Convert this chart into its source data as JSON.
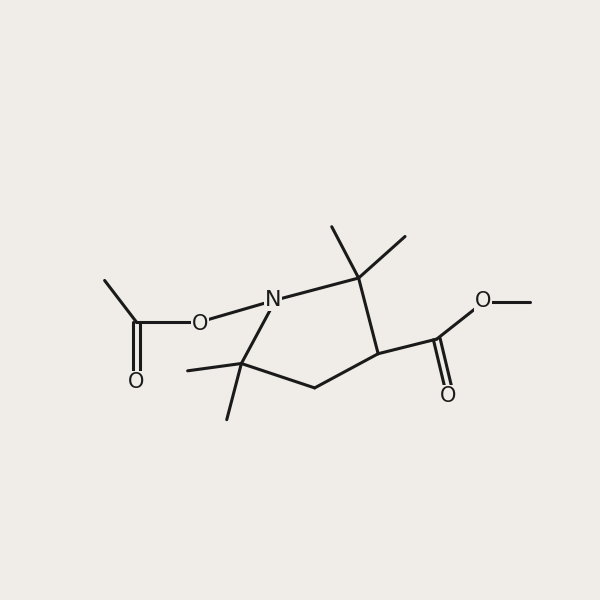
{
  "background_color": "#f0ede8",
  "line_color": "#1a1a1a",
  "line_width": 2.2,
  "font_size": 15,
  "figsize": [
    6.0,
    6.0
  ],
  "dpi": 100,
  "xlim": [
    -5.5,
    6.5
  ],
  "ylim": [
    -4.5,
    4.5
  ]
}
